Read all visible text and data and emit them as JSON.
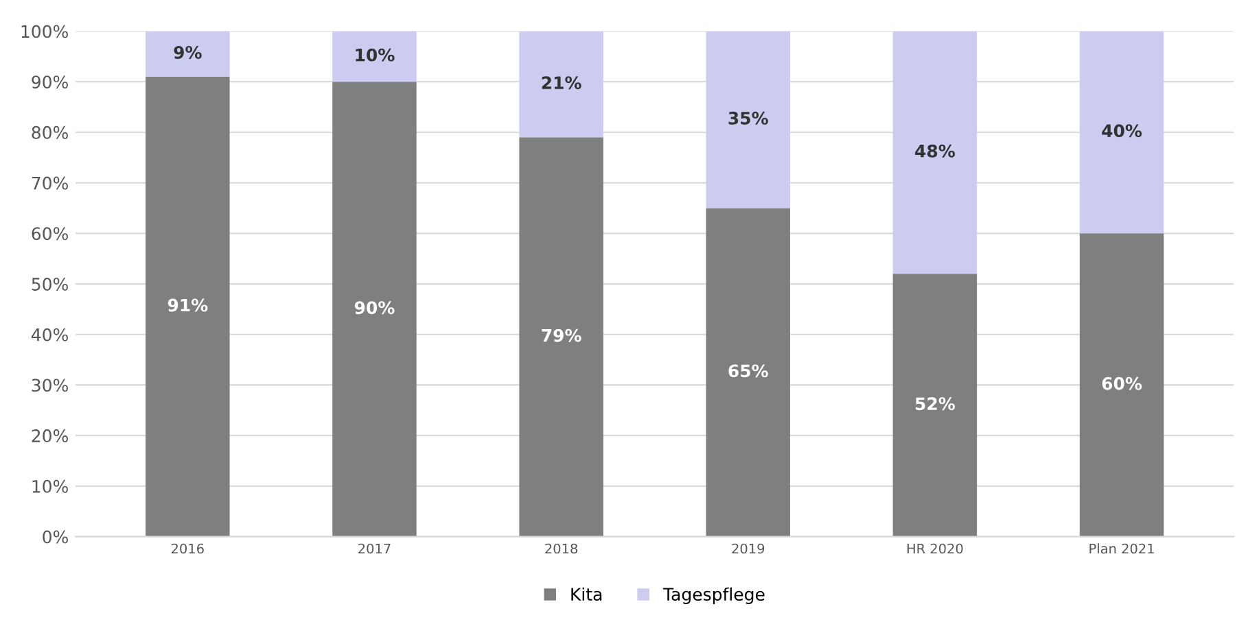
{
  "chart_data": {
    "type": "bar",
    "stacked": true,
    "categories": [
      "2016",
      "2017",
      "2018",
      "2019",
      "HR 2020",
      "Plan 2021"
    ],
    "series": [
      {
        "name": "Kita",
        "color": "#7f7f7f",
        "values": [
          91,
          90,
          79,
          65,
          52,
          60
        ],
        "value_labels": [
          "91%",
          "90%",
          "79%",
          "65%",
          "52%",
          "60%"
        ]
      },
      {
        "name": "Tagespflege",
        "color": "#ccccf0",
        "values": [
          9,
          10,
          21,
          35,
          48,
          40
        ],
        "value_labels": [
          "9%",
          "10%",
          "21%",
          "35%",
          "48%",
          "40%"
        ]
      }
    ],
    "ylim": [
      0,
      100
    ],
    "yticks": [
      {
        "value": 0,
        "label": "0%"
      },
      {
        "value": 10,
        "label": "10%"
      },
      {
        "value": 20,
        "label": "20%"
      },
      {
        "value": 30,
        "label": "30%"
      },
      {
        "value": 40,
        "label": "40%"
      },
      {
        "value": 50,
        "label": "50%"
      },
      {
        "value": 60,
        "label": "60%"
      },
      {
        "value": 70,
        "label": "70%"
      },
      {
        "value": 80,
        "label": "80%"
      },
      {
        "value": 90,
        "label": "90%"
      },
      {
        "value": 100,
        "label": "100%"
      }
    ],
    "grid": "y",
    "legend": "bottom"
  }
}
